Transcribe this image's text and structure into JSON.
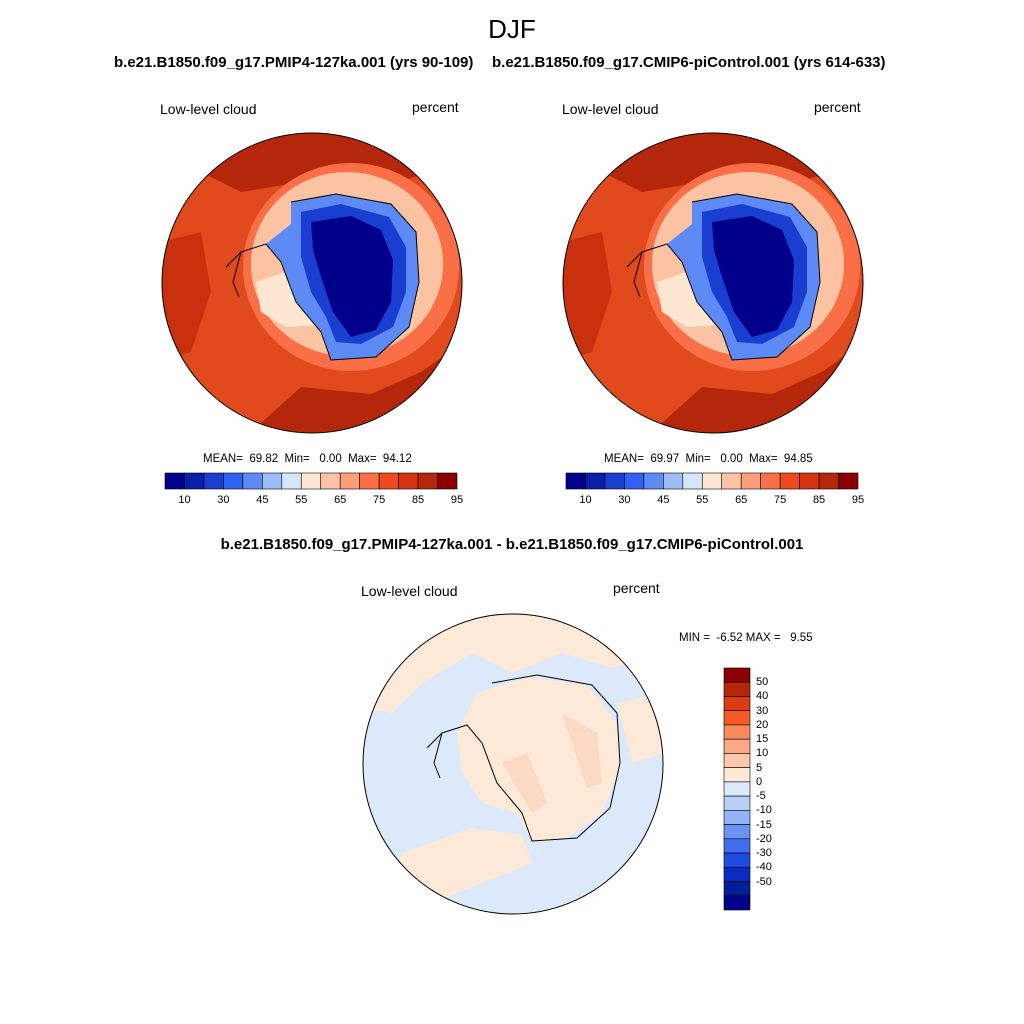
{
  "season": "DJF",
  "panels": [
    {
      "title": "b.e21.B1850.f09_g17.PMIP4-127ka.001 (yrs 90-109)",
      "variable": "Low-level cloud",
      "units": "percent",
      "stats": "MEAN=  69.82  Min=   0.00  Max=  94.12"
    },
    {
      "title": "b.e21.B1850.f09_g17.CMIP6-piControl.001 (yrs 614-633)",
      "variable": "Low-level cloud",
      "units": "percent",
      "stats": "MEAN=  69.97  Min=   0.00  Max=  94.85"
    }
  ],
  "difference_panel": {
    "title": "b.e21.B1850.f09_g17.PMIP4-127ka.001 - b.e21.B1850.f09_g17.CMIP6-piControl.001",
    "variable": "Low-level cloud",
    "units": "percent",
    "stats": "MIN =  -6.52 MAX =   9.55"
  },
  "colorbar_main": {
    "colors": [
      "#00008b",
      "#0a1fa8",
      "#1a3fd0",
      "#2f62f0",
      "#5d8af5",
      "#9bbcf8",
      "#d5e6fb",
      "#fde7d3",
      "#fcc3a3",
      "#fb9e7a",
      "#f86f48",
      "#ee4a1c",
      "#d53410",
      "#b5270b",
      "#8b0000"
    ],
    "tick_labels": [
      "10",
      "30",
      "45",
      "55",
      "65",
      "75",
      "85",
      "95"
    ]
  },
  "colorbar_diff": {
    "colors_top_to_bottom": [
      "#8b0000",
      "#b5270b",
      "#d93d10",
      "#f55a20",
      "#f98a5e",
      "#fba888",
      "#fcc7ab",
      "#fde9d8",
      "#dbe9fb",
      "#b8cff7",
      "#93b2f3",
      "#6a92f0",
      "#3f6ded",
      "#1f4de2",
      "#0a2cc4",
      "#011e9c",
      "#00008b"
    ],
    "labels_top_to_bottom": [
      "50",
      "40",
      "30",
      "20",
      "15",
      "10",
      "5",
      "0",
      "-5",
      "-10",
      "-15",
      "-20",
      "-30",
      "-40",
      "-50"
    ]
  },
  "chart_data": {
    "type": "polar-contour-map",
    "projection": "south polar stereographic",
    "region": "Antarctica and Southern Ocean",
    "fields": [
      {
        "name": "PMIP4-127ka low-level cloud",
        "mean": 69.82,
        "min": 0.0,
        "max": 94.12
      },
      {
        "name": "CMIP6-piControl low-level cloud",
        "mean": 69.97,
        "min": 0.0,
        "max": 94.85
      },
      {
        "name": "difference",
        "min": -6.52,
        "max": 9.55
      }
    ]
  }
}
